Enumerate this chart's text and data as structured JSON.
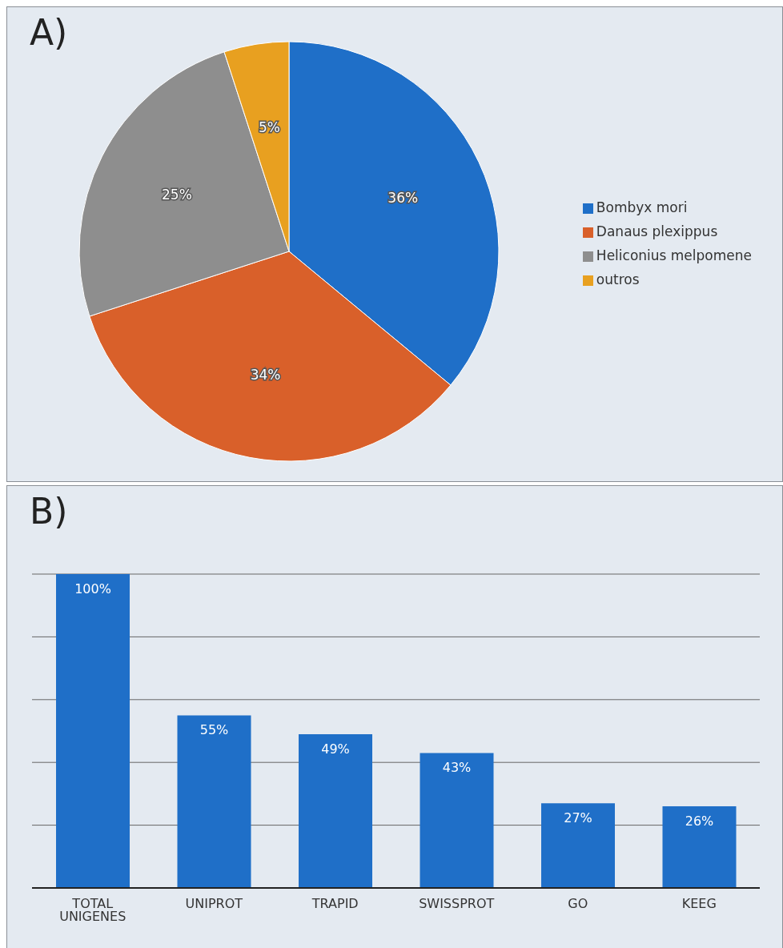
{
  "chart_data": [
    {
      "type": "pie",
      "title": "A)",
      "categories": [
        "Bombyx mori",
        "Danaus plexippus",
        "Heliconius melpomene",
        "outros"
      ],
      "values": [
        36,
        34,
        25,
        5
      ],
      "value_labels": [
        "36%",
        "34%",
        "25%",
        "5%"
      ],
      "colors": [
        "#1f6fc8",
        "#d9602a",
        "#8e8e8e",
        "#e8a020"
      ],
      "legend": "right"
    },
    {
      "type": "bar",
      "title": "B)",
      "categories": [
        "TOTAL UNIGENES",
        "UNIPROT",
        "TRAPID",
        "SWISSPROT",
        "GO",
        "KEEG"
      ],
      "values": [
        100,
        55,
        49,
        43,
        27,
        26
      ],
      "value_labels": [
        "100%",
        "55%",
        "49%",
        "43%",
        "27%",
        "26%"
      ],
      "color": "#1f6fc8",
      "ylim": [
        0,
        100
      ],
      "tick_labels": "x",
      "grid": "y"
    }
  ]
}
